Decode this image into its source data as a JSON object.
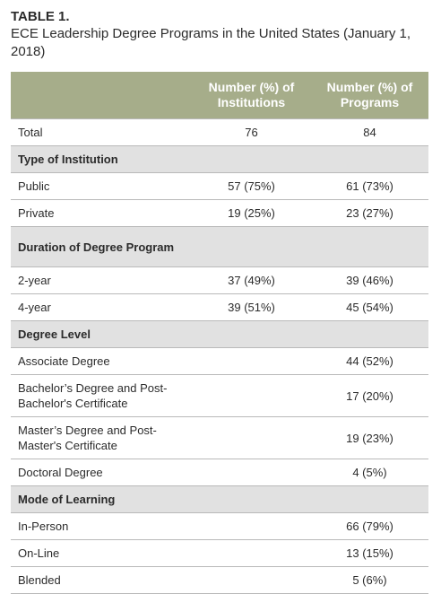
{
  "caption": {
    "label": "TABLE 1.",
    "title": "ECE Leadership Degree Programs in the United States (January 1, 2018)"
  },
  "table": {
    "headers": [
      "",
      "Number (%) of Institutions",
      "Number (%) of Programs"
    ],
    "rows": [
      {
        "kind": "data",
        "cells": [
          "Total",
          "76",
          "84"
        ]
      },
      {
        "kind": "section",
        "cells": [
          "Type of Institution",
          "",
          ""
        ]
      },
      {
        "kind": "data",
        "cells": [
          "Public",
          "57 (75%)",
          "61 (73%)"
        ]
      },
      {
        "kind": "data",
        "cells": [
          "Private",
          "19 (25%)",
          "23 (27%)"
        ]
      },
      {
        "kind": "section",
        "cells": [
          "Duration of Degree Program",
          "",
          ""
        ]
      },
      {
        "kind": "data",
        "cells": [
          "2-year",
          "37 (49%)",
          "39 (46%)"
        ]
      },
      {
        "kind": "data",
        "cells": [
          "4-year",
          "39 (51%)",
          "45 (54%)"
        ]
      },
      {
        "kind": "section",
        "cells": [
          "Degree Level",
          "",
          ""
        ]
      },
      {
        "kind": "data",
        "cells": [
          "Associate Degree",
          "",
          "44 (52%)"
        ]
      },
      {
        "kind": "data",
        "cells": [
          "Bachelor’s Degree and Post-Bachelor's Certificate",
          "",
          "17 (20%)"
        ]
      },
      {
        "kind": "data",
        "cells": [
          "Master’s Degree and Post-Master's Certificate",
          "",
          "19 (23%)"
        ]
      },
      {
        "kind": "data",
        "cells": [
          "Doctoral Degree",
          "",
          "4 (5%)"
        ]
      },
      {
        "kind": "section",
        "cells": [
          "Mode of Learning",
          "",
          ""
        ]
      },
      {
        "kind": "data",
        "cells": [
          "In-Person",
          "",
          "66 (79%)"
        ]
      },
      {
        "kind": "data",
        "cells": [
          "On-Line",
          "",
          "13 (15%)"
        ]
      },
      {
        "kind": "data",
        "cells": [
          "Blended",
          "",
          "5 (6%)"
        ]
      }
    ]
  },
  "colors": {
    "header_bg": "#a6ad8a",
    "section_bg": "#e1e1e1"
  }
}
